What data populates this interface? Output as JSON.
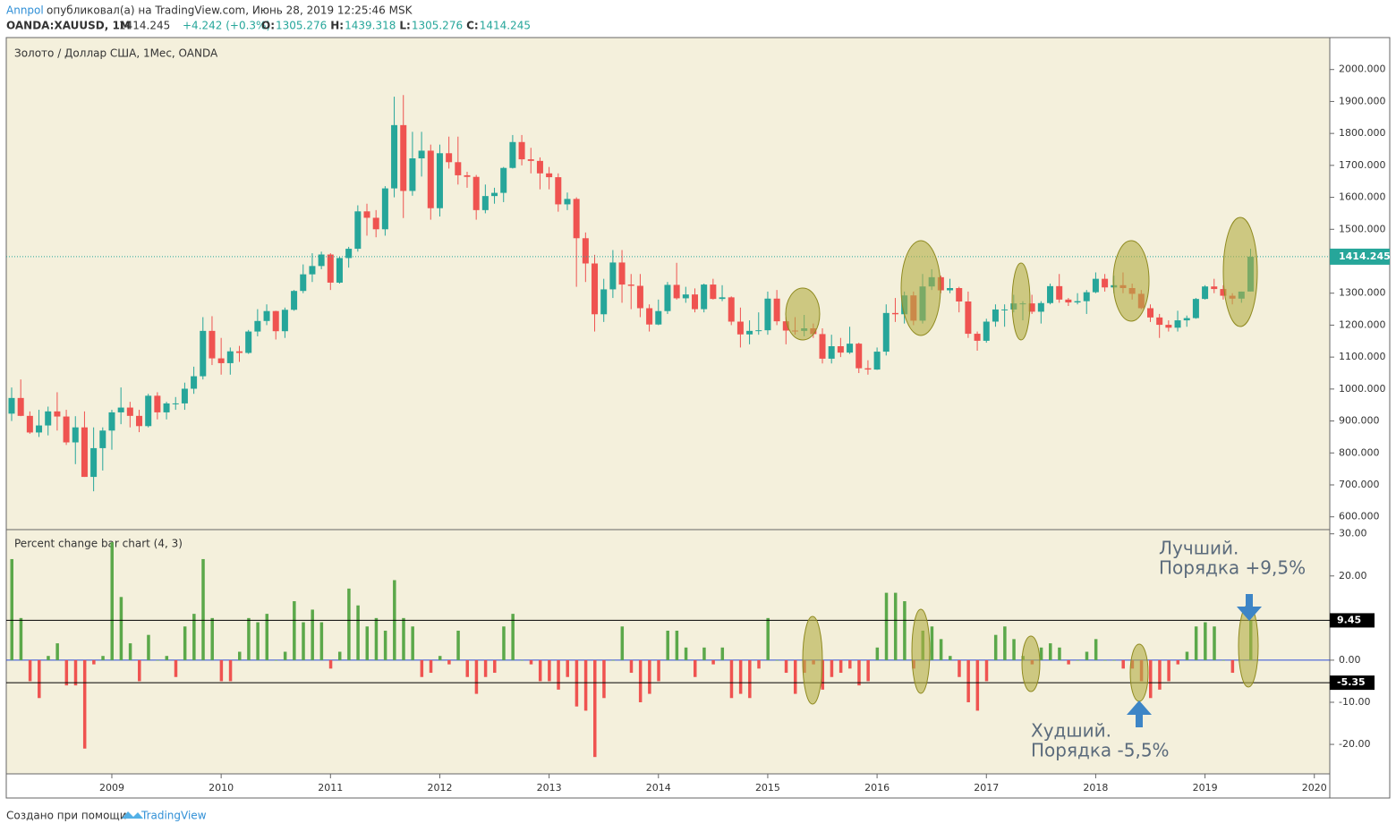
{
  "header": {
    "author": "Annpol",
    "published": "опубликовал(а) на TradingView.com, Июнь 28, 2019 12:25:46 MSK",
    "symbol": "OANDA:XAUUSD, 1M",
    "last": "1414.245",
    "change": "+4.242 (+0.3%)",
    "ohlc": [
      {
        "label": "O:",
        "value": "1305.276"
      },
      {
        "label": "H:",
        "value": "1439.318"
      },
      {
        "label": "L:",
        "value": "1305.276"
      },
      {
        "label": "C:",
        "value": "1414.245"
      }
    ]
  },
  "footer": {
    "text": "Создано при помощи",
    "brand": "TradingView"
  },
  "chart_data": [
    {
      "type": "candlestick",
      "title": "Золото / Доллар США, 1Мес, OANDA",
      "up_color": "#26a69a",
      "down_color": "#ef5350",
      "ylim": [
        560,
        2100
      ],
      "yticks": [
        {
          "value": 600,
          "label": "600.000"
        },
        {
          "value": 700,
          "label": "700.000"
        },
        {
          "value": 800,
          "label": "800.000"
        },
        {
          "value": 900,
          "label": "900.000"
        },
        {
          "value": 1000,
          "label": "1000.000"
        },
        {
          "value": 1100,
          "label": "1100.000"
        },
        {
          "value": 1200,
          "label": "1200.000"
        },
        {
          "value": 1300,
          "label": "1300.000"
        },
        {
          "value": 1400,
          "label": "1400.000"
        },
        {
          "value": 1500,
          "label": "1500.000"
        },
        {
          "value": 1600,
          "label": "1600.000"
        },
        {
          "value": 1700,
          "label": "1700.000"
        },
        {
          "value": 1800,
          "label": "1800.000"
        },
        {
          "value": 1900,
          "label": "1900.000"
        },
        {
          "value": 2000,
          "label": "2000.000"
        }
      ],
      "last_price": 1414.245,
      "open": [
        923,
        972,
        916,
        864,
        886,
        930,
        914,
        833,
        880,
        725,
        815,
        870,
        927,
        942,
        916,
        884,
        979,
        927,
        955,
        955,
        1001,
        1040,
        1182,
        1096,
        1081,
        1118,
        1113,
        1180,
        1213,
        1244,
        1181,
        1248,
        1307,
        1359,
        1385,
        1421,
        1333,
        1410,
        1439,
        1556,
        1536,
        1500,
        1628,
        1826,
        1620,
        1722,
        1746,
        1566,
        1738,
        1710,
        1669,
        1664,
        1560,
        1604,
        1614,
        1692,
        1773,
        1719,
        1714,
        1675,
        1663,
        1578,
        1595,
        1472,
        1393,
        1234,
        1312,
        1396,
        1327,
        1323,
        1253,
        1202,
        1244,
        1326,
        1284,
        1296,
        1250,
        1327,
        1282,
        1287,
        1211,
        1171,
        1182,
        1184,
        1283,
        1212,
        1183,
        1182,
        1190,
        1172,
        1095,
        1134,
        1114,
        1142,
        1065,
        1061,
        1117,
        1238,
        1234,
        1293,
        1214,
        1321,
        1350,
        1309,
        1316,
        1274,
        1173,
        1151,
        1211,
        1249,
        1249,
        1268,
        1268,
        1242,
        1269,
        1322,
        1280,
        1271,
        1275,
        1303,
        1345,
        1318,
        1325,
        1316,
        1298,
        1253,
        1224,
        1201,
        1192,
        1215,
        1222,
        1282,
        1321,
        1313,
        1292,
        1283,
        1305.276
      ],
      "high": [
        1005,
        1030,
        930,
        935,
        945,
        990,
        935,
        915,
        930,
        880,
        880,
        935,
        1005,
        960,
        935,
        985,
        990,
        960,
        975,
        1020,
        1070,
        1225,
        1228,
        1160,
        1130,
        1135,
        1185,
        1250,
        1265,
        1245,
        1255,
        1310,
        1390,
        1425,
        1430,
        1425,
        1415,
        1445,
        1575,
        1580,
        1560,
        1635,
        1915,
        1920,
        1805,
        1805,
        1765,
        1765,
        1790,
        1790,
        1680,
        1670,
        1640,
        1630,
        1695,
        1795,
        1795,
        1755,
        1725,
        1695,
        1675,
        1615,
        1600,
        1490,
        1420,
        1345,
        1435,
        1435,
        1360,
        1360,
        1265,
        1280,
        1335,
        1395,
        1320,
        1315,
        1330,
        1345,
        1325,
        1290,
        1255,
        1215,
        1240,
        1305,
        1310,
        1225,
        1225,
        1232,
        1205,
        1190,
        1170,
        1160,
        1195,
        1145,
        1090,
        1130,
        1265,
        1285,
        1305,
        1305,
        1360,
        1375,
        1355,
        1345,
        1320,
        1305,
        1180,
        1220,
        1265,
        1265,
        1295,
        1275,
        1295,
        1275,
        1330,
        1360,
        1285,
        1300,
        1310,
        1365,
        1360,
        1355,
        1365,
        1330,
        1310,
        1265,
        1235,
        1215,
        1245,
        1230,
        1285,
        1325,
        1345,
        1325,
        1300,
        1305,
        1439.318
      ],
      "low": [
        900,
        915,
        860,
        850,
        855,
        870,
        825,
        765,
        725,
        680,
        745,
        810,
        890,
        880,
        865,
        880,
        905,
        905,
        935,
        935,
        985,
        1030,
        1075,
        1045,
        1045,
        1085,
        1110,
        1165,
        1200,
        1155,
        1160,
        1245,
        1300,
        1335,
        1375,
        1310,
        1330,
        1380,
        1430,
        1480,
        1475,
        1480,
        1600,
        1535,
        1605,
        1665,
        1530,
        1540,
        1690,
        1640,
        1630,
        1530,
        1550,
        1580,
        1585,
        1690,
        1700,
        1675,
        1625,
        1625,
        1555,
        1560,
        1320,
        1335,
        1180,
        1210,
        1285,
        1270,
        1250,
        1225,
        1180,
        1200,
        1235,
        1280,
        1270,
        1240,
        1240,
        1280,
        1275,
        1200,
        1130,
        1140,
        1170,
        1170,
        1200,
        1140,
        1170,
        1165,
        1160,
        1080,
        1080,
        1100,
        1110,
        1050,
        1045,
        1060,
        1105,
        1210,
        1205,
        1200,
        1205,
        1310,
        1300,
        1300,
        1240,
        1160,
        1120,
        1145,
        1195,
        1195,
        1240,
        1215,
        1235,
        1205,
        1265,
        1270,
        1260,
        1265,
        1235,
        1300,
        1305,
        1300,
        1300,
        1280,
        1250,
        1210,
        1160,
        1180,
        1180,
        1195,
        1220,
        1280,
        1300,
        1280,
        1265,
        1270,
        1305.276
      ],
      "close": [
        972,
        916,
        864,
        886,
        930,
        914,
        833,
        880,
        725,
        815,
        870,
        927,
        942,
        916,
        884,
        979,
        927,
        955,
        955,
        1001,
        1040,
        1182,
        1096,
        1081,
        1118,
        1113,
        1180,
        1213,
        1244,
        1181,
        1248,
        1307,
        1359,
        1385,
        1421,
        1333,
        1410,
        1439,
        1556,
        1536,
        1500,
        1628,
        1826,
        1620,
        1722,
        1746,
        1566,
        1738,
        1710,
        1669,
        1664,
        1560,
        1604,
        1614,
        1692,
        1773,
        1719,
        1714,
        1675,
        1663,
        1578,
        1595,
        1472,
        1393,
        1234,
        1312,
        1396,
        1327,
        1323,
        1253,
        1202,
        1244,
        1326,
        1284,
        1296,
        1250,
        1327,
        1282,
        1287,
        1211,
        1171,
        1182,
        1184,
        1283,
        1212,
        1183,
        1182,
        1190,
        1172,
        1095,
        1134,
        1114,
        1142,
        1065,
        1061,
        1117,
        1238,
        1234,
        1293,
        1214,
        1321,
        1350,
        1309,
        1316,
        1274,
        1173,
        1151,
        1211,
        1249,
        1249,
        1268,
        1268,
        1242,
        1269,
        1322,
        1280,
        1271,
        1275,
        1303,
        1345,
        1318,
        1325,
        1316,
        1298,
        1253,
        1224,
        1201,
        1192,
        1215,
        1222,
        1282,
        1321,
        1313,
        1292,
        1283,
        1305,
        1414.245
      ]
    },
    {
      "type": "bar",
      "title": "Percent change bar chart (4, 3)",
      "up_color": "#5ba84a",
      "down_color": "#ef5350",
      "ylim": [
        -27,
        31
      ],
      "yticks": [
        {
          "value": 30,
          "label": "30.00"
        },
        {
          "value": 20,
          "label": "20.00"
        },
        {
          "value": 10,
          "label": "10.00"
        },
        {
          "value": 0,
          "label": "0.00"
        },
        {
          "value": -10,
          "label": "-10.00"
        },
        {
          "value": -20,
          "label": "-20.00"
        }
      ],
      "levels": [
        9.45,
        -5.35
      ],
      "values": [
        24,
        10,
        -5,
        -9,
        1,
        4,
        -6,
        -6,
        -21,
        -1,
        1,
        28,
        15,
        4,
        -5,
        6,
        0,
        1,
        -4,
        8,
        11,
        24,
        10,
        -5,
        -5,
        2,
        10,
        9,
        11,
        0,
        2,
        14,
        9,
        12,
        9,
        -2,
        2,
        17,
        13,
        8,
        10,
        7,
        19,
        10,
        8,
        -4,
        -3,
        1,
        -1,
        7,
        -4,
        -8,
        -4,
        -3,
        8,
        11,
        0,
        -1,
        -5,
        -5,
        -7,
        -4,
        -11,
        -12,
        -23,
        -9,
        0,
        8,
        -3,
        -10,
        -8,
        -5,
        7,
        7,
        3,
        -4,
        3,
        -1,
        3,
        -9,
        -8,
        -9,
        -2,
        10,
        0,
        -3,
        -8,
        -3,
        -1,
        -7,
        -4,
        -3,
        -2,
        -6,
        -5,
        3,
        16,
        16,
        14,
        -2,
        7,
        8,
        5,
        1,
        -4,
        -10,
        -12,
        -5,
        6,
        8,
        5,
        1,
        -1,
        3,
        4,
        3,
        -1,
        0,
        2,
        5,
        0,
        0,
        -2,
        -2,
        -5,
        -9,
        -7,
        -5,
        -1,
        2,
        8,
        9,
        8,
        0,
        -3,
        0,
        9.45
      ],
      "xticks": [
        2009,
        2010,
        2011,
        2012,
        2013,
        2014,
        2015,
        2016,
        2017,
        2018,
        2019,
        2020
      ],
      "annotations": [
        {
          "title": "Лучший.",
          "text": "Порядка +9,5%"
        },
        {
          "title": "Худший.",
          "text": "Порядка -5,5%"
        }
      ]
    }
  ]
}
